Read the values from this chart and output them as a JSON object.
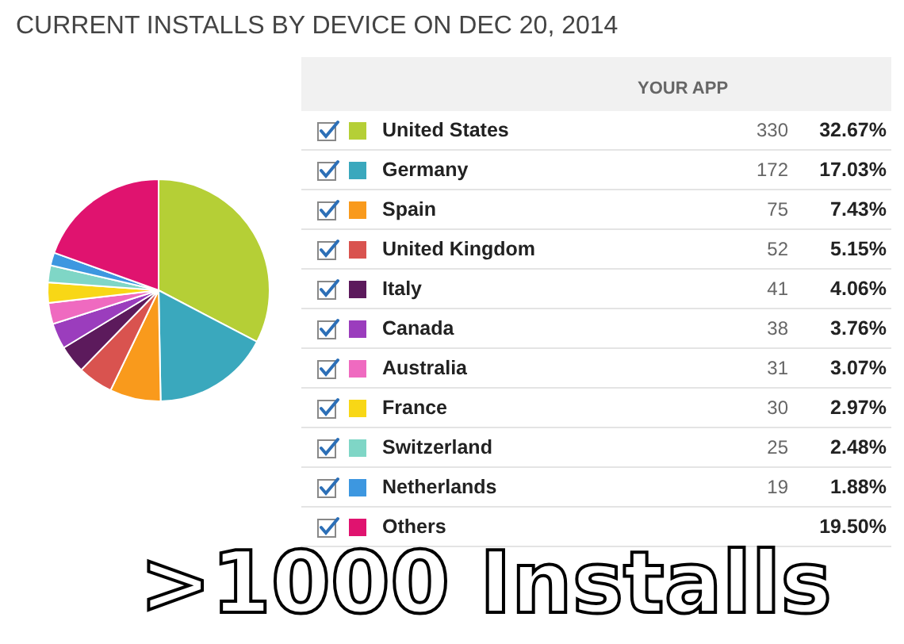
{
  "chart_data": {
    "type": "pie",
    "title": "CURRENT INSTALLS BY DEVICE ON DEC 20, 2014",
    "categories": [
      "United States",
      "Germany",
      "Spain",
      "United Kingdom",
      "Italy",
      "Canada",
      "Australia",
      "France",
      "Switzerland",
      "Netherlands",
      "Others"
    ],
    "values": [
      330,
      172,
      75,
      52,
      41,
      38,
      31,
      30,
      25,
      19,
      197
    ],
    "colors": [
      "#b5cf36",
      "#3aa8bd",
      "#f99a1c",
      "#d9534f",
      "#5c1a5c",
      "#9b3dbd",
      "#ef6ac0",
      "#f8d716",
      "#7fd6c6",
      "#3d97e0",
      "#e0136f"
    ],
    "value_labels": [
      "330",
      "172",
      "75",
      "52",
      "41",
      "38",
      "31",
      "30",
      "25",
      "19",
      null
    ],
    "legend": "right",
    "legend_title": "YOUR APP",
    "annotations": [
      ">1000 Installs",
      {
        "text": "32.67%",
        "x": "United States"
      },
      {
        "text": "17.03%",
        "x": "Germany"
      },
      {
        "text": "7.43%",
        "x": "Spain"
      },
      {
        "text": "5.15%",
        "x": "United Kingdom"
      },
      {
        "text": "4.06%",
        "x": "Italy"
      },
      {
        "text": "3.76%",
        "x": "Canada"
      },
      {
        "text": "3.07%",
        "x": "Australia"
      },
      {
        "text": "2.97%",
        "x": "France"
      },
      {
        "text": "2.48%",
        "x": "Switzerland"
      },
      {
        "text": "1.88%",
        "x": "Netherlands"
      },
      {
        "text": "19.50%",
        "x": "Others"
      }
    ]
  }
}
